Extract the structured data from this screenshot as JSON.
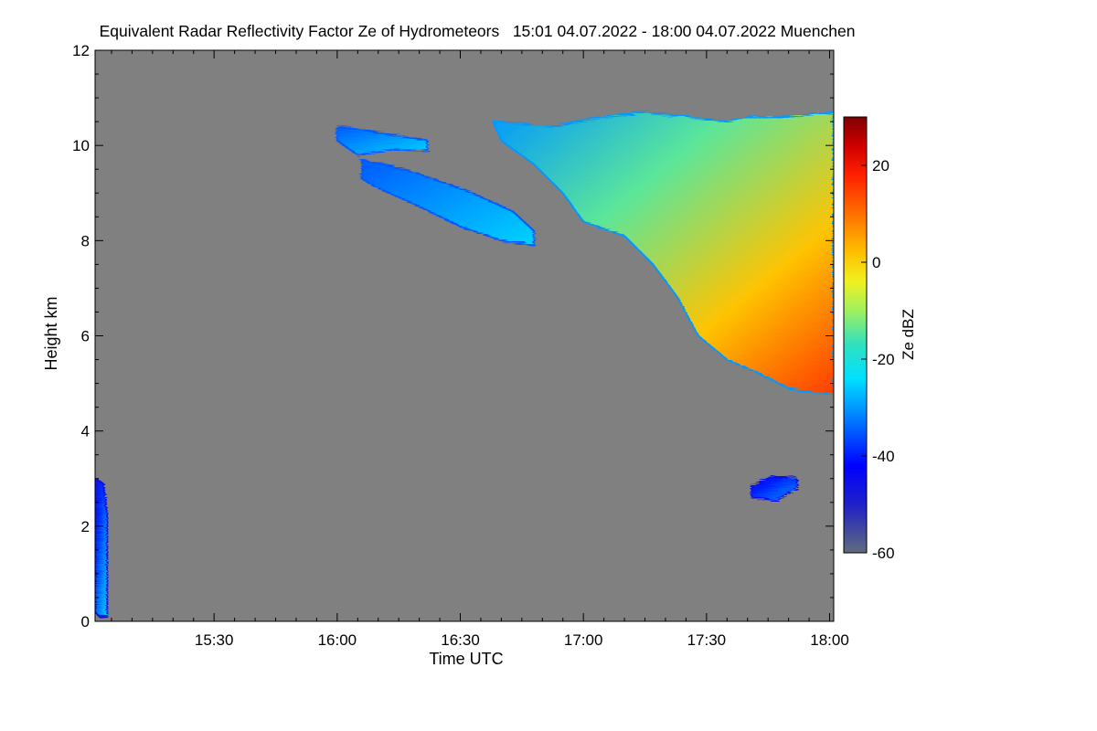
{
  "chart_data": {
    "type": "heatmap",
    "title": "Equivalent Radar Reflectivity Factor Ze of Hydrometeors   15:01 04.07.2022 - 18:00 04.07.2022 Muenchen",
    "xlabel": "Time UTC",
    "ylabel": "Height km",
    "x_range_minutes_utc": [
      901,
      1081
    ],
    "x_ticks": [
      {
        "minute": 930,
        "label": "15:30"
      },
      {
        "minute": 960,
        "label": "16:00"
      },
      {
        "minute": 990,
        "label": "16:30"
      },
      {
        "minute": 1020,
        "label": "17:00"
      },
      {
        "minute": 1050,
        "label": "17:30"
      },
      {
        "minute": 1080,
        "label": "18:00"
      }
    ],
    "ylim": [
      0,
      12
    ],
    "y_ticks": [
      0,
      2,
      4,
      6,
      8,
      10,
      12
    ],
    "no_data_color": "#808080",
    "colorbar": {
      "label": "Ze dBZ",
      "range": [
        -60,
        30
      ],
      "ticks": [
        -60,
        -40,
        -20,
        0,
        20
      ],
      "stops": [
        {
          "value": -60,
          "color": "#606c7c"
        },
        {
          "value": -50,
          "color": "#2020c8"
        },
        {
          "value": -42,
          "color": "#0000ff"
        },
        {
          "value": -32,
          "color": "#0080ff"
        },
        {
          "value": -24,
          "color": "#00e0ff"
        },
        {
          "value": -17,
          "color": "#30e0c0"
        },
        {
          "value": -10,
          "color": "#a0f060"
        },
        {
          "value": -4,
          "color": "#f0f020"
        },
        {
          "value": 2,
          "color": "#ffc000"
        },
        {
          "value": 10,
          "color": "#ff7000"
        },
        {
          "value": 18,
          "color": "#ff2000"
        },
        {
          "value": 24,
          "color": "#d00000"
        },
        {
          "value": 30,
          "color": "#800000"
        }
      ]
    },
    "echoes": [
      {
        "name": "upper ice cloud (main)",
        "ze_range": [
          -30,
          15
        ],
        "top_edge": [
          [
            1013,
            10.4
          ],
          [
            1025,
            10.6
          ],
          [
            1035,
            10.7
          ],
          [
            1045,
            10.6
          ],
          [
            1055,
            10.5
          ],
          [
            1060,
            10.6
          ],
          [
            1070,
            10.6
          ],
          [
            1081,
            10.7
          ]
        ],
        "base_edge": [
          [
            1081,
            4.8
          ],
          [
            1076,
            4.8
          ],
          [
            1070,
            4.9
          ],
          [
            1063,
            5.2
          ],
          [
            1055,
            5.5
          ],
          [
            1048,
            6.0
          ],
          [
            1043,
            6.8
          ],
          [
            1037,
            7.5
          ],
          [
            1030,
            8.1
          ],
          [
            1020,
            8.4
          ],
          [
            1015,
            9.0
          ],
          [
            1008,
            9.6
          ],
          [
            1000,
            10.1
          ],
          [
            998,
            10.5
          ]
        ]
      },
      {
        "name": "upper cloud fragment 1",
        "ze_range": [
          -35,
          -25
        ],
        "top_edge": [
          [
            960,
            10.4
          ],
          [
            968,
            10.3
          ],
          [
            975,
            10.2
          ],
          [
            982,
            10.1
          ]
        ],
        "base_edge": [
          [
            982,
            9.9
          ],
          [
            972,
            9.9
          ],
          [
            965,
            9.8
          ],
          [
            960,
            10.1
          ]
        ]
      },
      {
        "name": "upper cloud fragment 2",
        "ze_range": [
          -35,
          -25
        ],
        "top_edge": [
          [
            966,
            9.7
          ],
          [
            972,
            9.6
          ],
          [
            980,
            9.4
          ],
          [
            993,
            9.0
          ],
          [
            1003,
            8.6
          ],
          [
            1008,
            8.2
          ]
        ],
        "base_edge": [
          [
            1008,
            7.9
          ],
          [
            1000,
            8.0
          ],
          [
            990,
            8.3
          ],
          [
            978,
            8.8
          ],
          [
            970,
            9.1
          ],
          [
            966,
            9.3
          ]
        ]
      },
      {
        "name": "mid-level patch",
        "ze_range": [
          -45,
          -30
        ],
        "top_edge": [
          [
            1061,
            2.85
          ],
          [
            1066,
            3.05
          ],
          [
            1072,
            3.0
          ]
        ],
        "base_edge": [
          [
            1072,
            2.8
          ],
          [
            1067,
            2.55
          ],
          [
            1061,
            2.6
          ]
        ]
      },
      {
        "name": "near-surface clutter",
        "ze_range": [
          -45,
          -25
        ],
        "top_edge": [
          [
            901,
            3.0
          ],
          [
            903,
            2.9
          ],
          [
            904,
            2.2
          ]
        ],
        "base_edge": [
          [
            904,
            0.1
          ],
          [
            902,
            0.1
          ],
          [
            901,
            0.2
          ]
        ]
      }
    ]
  }
}
